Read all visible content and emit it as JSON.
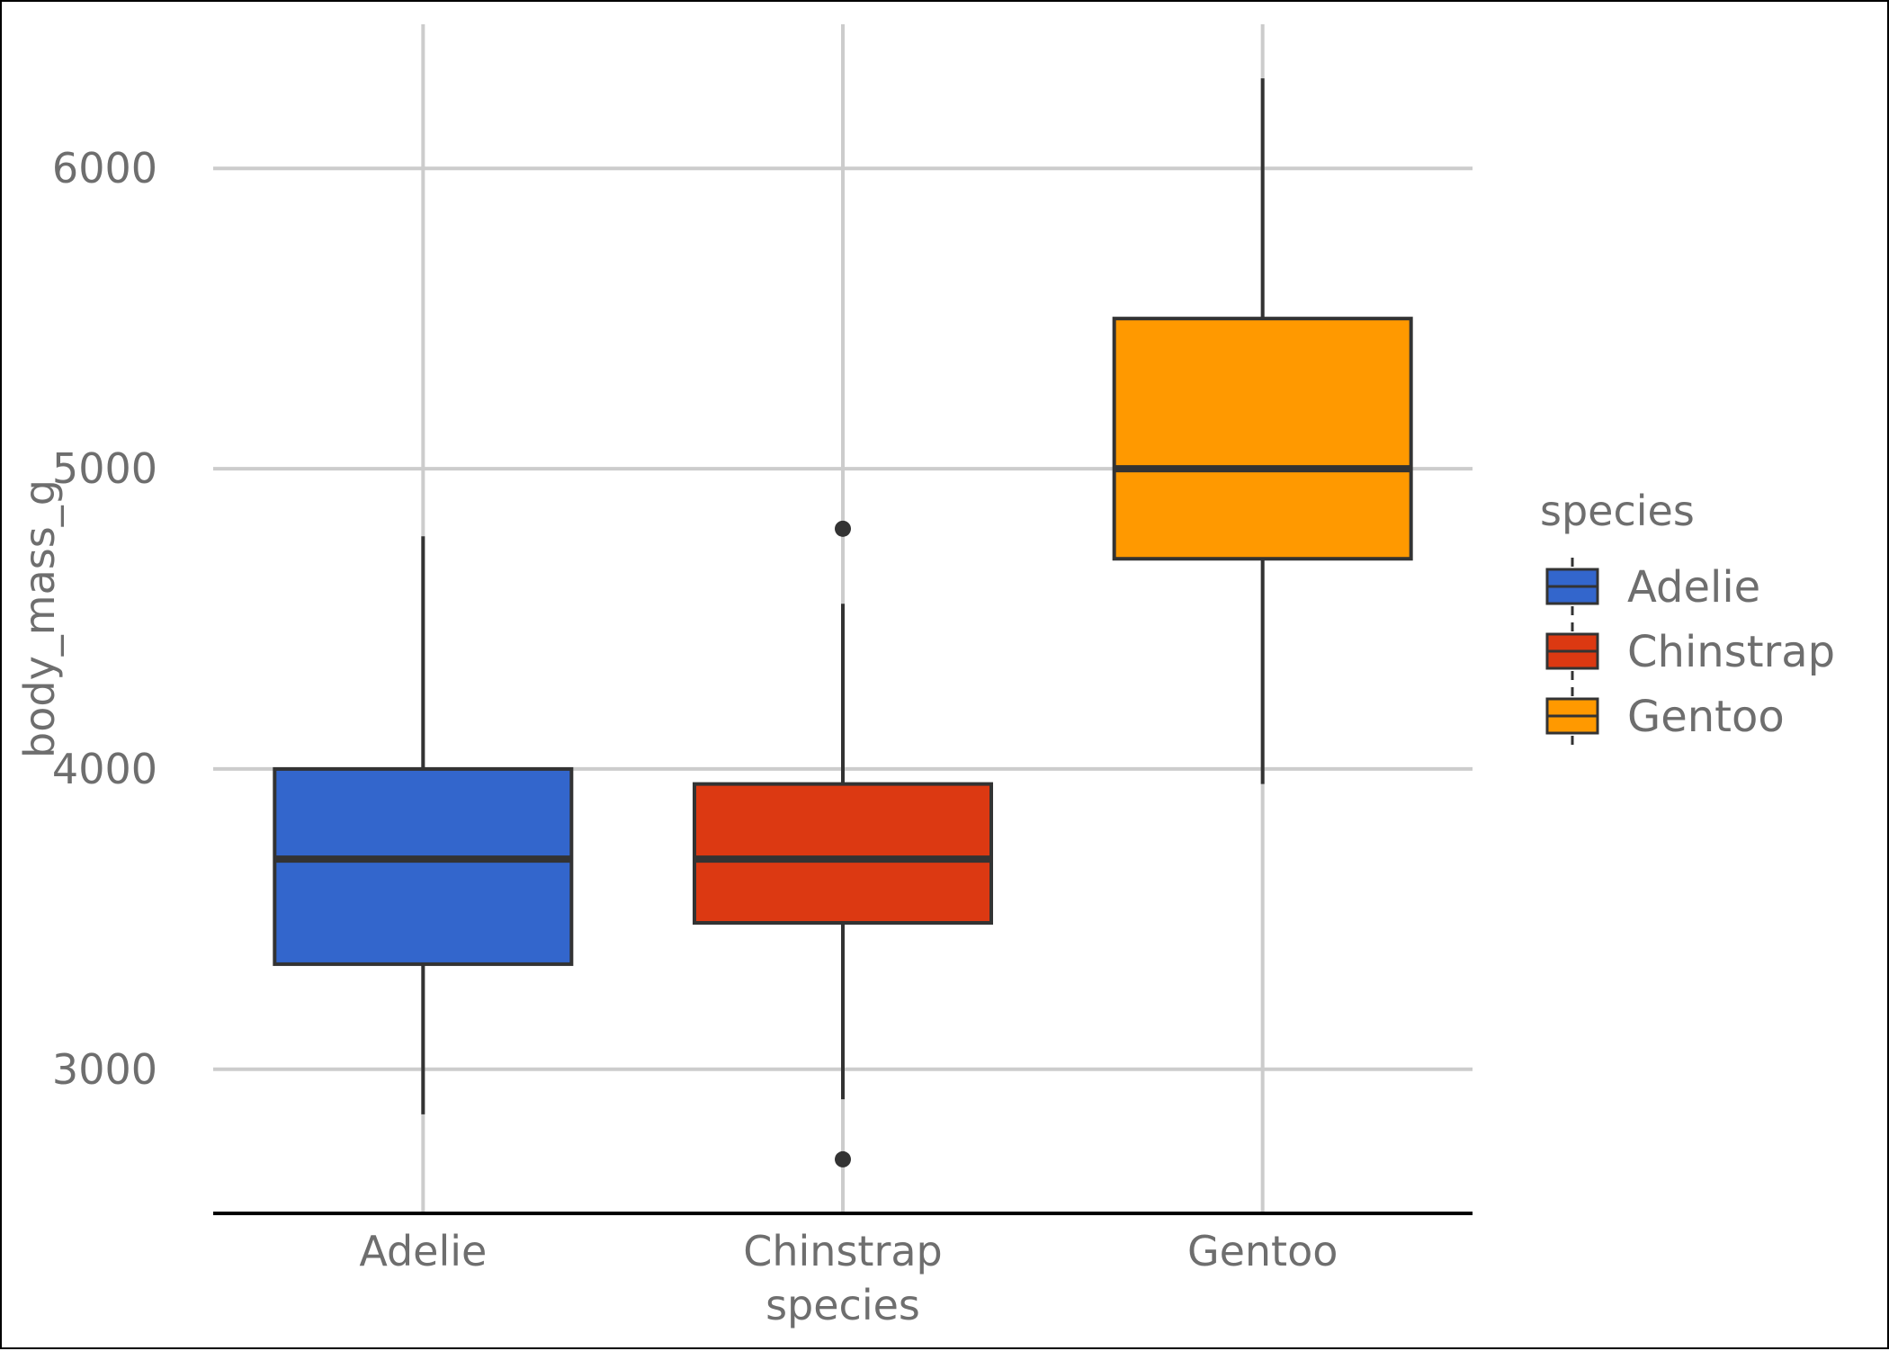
{
  "chart_data": {
    "type": "box",
    "xlabel": "species",
    "ylabel": "body_mass_g",
    "ylim": [
      2520,
      6480
    ],
    "yticks": [
      3000,
      4000,
      5000,
      6000
    ],
    "categories": [
      "Adelie",
      "Chinstrap",
      "Gentoo"
    ],
    "grid": true,
    "legend": {
      "title": "species",
      "position": "right",
      "entries": [
        "Adelie",
        "Chinstrap",
        "Gentoo"
      ]
    },
    "series": [
      {
        "name": "Adelie",
        "color": "#3366cc",
        "min": 2850,
        "q1": 3350,
        "median": 3700,
        "q3": 4000,
        "max": 4775,
        "outliers": []
      },
      {
        "name": "Chinstrap",
        "color": "#dc3912",
        "min": 2900,
        "q1": 3487.5,
        "median": 3700,
        "q3": 3950,
        "max": 4550,
        "outliers": [
          4800,
          2700
        ]
      },
      {
        "name": "Gentoo",
        "color": "#ff9900",
        "min": 3950,
        "q1": 4700,
        "median": 5000,
        "q3": 5500,
        "max": 6300,
        "outliers": []
      }
    ]
  }
}
